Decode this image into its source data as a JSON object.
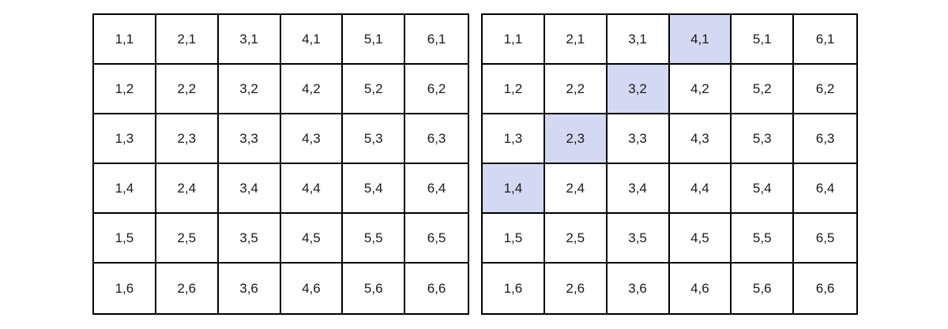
{
  "highlight_color": "#d3d9f3",
  "grids": [
    {
      "id": "left",
      "rows": [
        [
          "1,1",
          "2,1",
          "3,1",
          "4,1",
          "5,1",
          "6,1"
        ],
        [
          "1,2",
          "2,2",
          "3,2",
          "4,2",
          "5,2",
          "6,2"
        ],
        [
          "1,3",
          "2,3",
          "3,3",
          "4,3",
          "5,3",
          "6,3"
        ],
        [
          "1,4",
          "2,4",
          "3,4",
          "4,4",
          "5,4",
          "6,4"
        ],
        [
          "1,5",
          "2,5",
          "3,5",
          "4,5",
          "5,5",
          "6,5"
        ],
        [
          "1,6",
          "2,6",
          "3,6",
          "4,6",
          "5,6",
          "6,6"
        ]
      ],
      "highlighted": []
    },
    {
      "id": "right",
      "rows": [
        [
          "1,1",
          "2,1",
          "3,1",
          "4,1",
          "5,1",
          "6,1"
        ],
        [
          "1,2",
          "2,2",
          "3,2",
          "4,2",
          "5,2",
          "6,2"
        ],
        [
          "1,3",
          "2,3",
          "3,3",
          "4,3",
          "5,3",
          "6,3"
        ],
        [
          "1,4",
          "2,4",
          "3,4",
          "4,4",
          "5,4",
          "6,4"
        ],
        [
          "1,5",
          "2,5",
          "3,5",
          "4,5",
          "5,5",
          "6,5"
        ],
        [
          "1,6",
          "2,6",
          "3,6",
          "4,6",
          "5,6",
          "6,6"
        ]
      ],
      "highlighted": [
        "4,1",
        "3,2",
        "2,3",
        "1,4"
      ]
    }
  ]
}
